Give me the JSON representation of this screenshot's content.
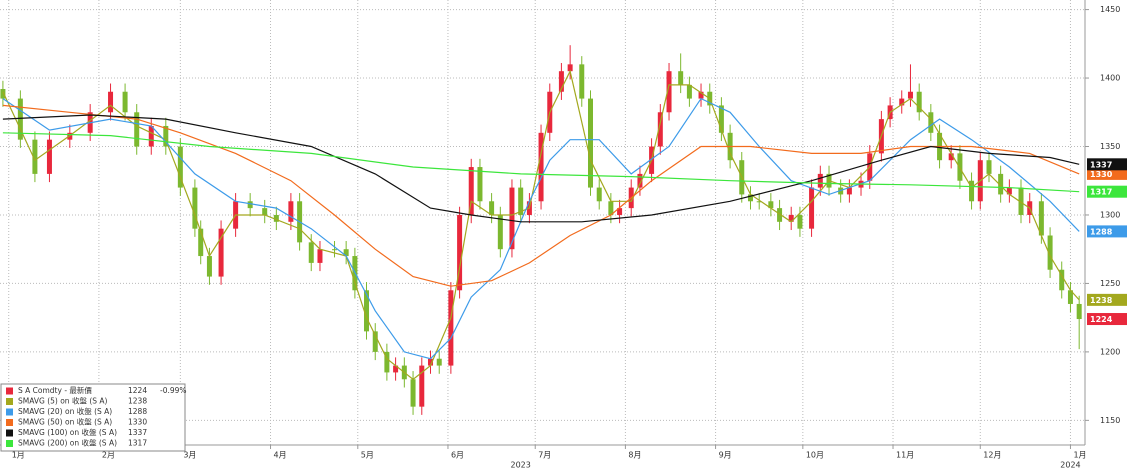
{
  "chart_data": {
    "type": "candlestick",
    "name": "S A Comdty - 最新價",
    "change": "-0.99%",
    "up_color": "#e8283c",
    "down_color": "#7cb82f",
    "x": [
      -2,
      4,
      9,
      14,
      21,
      28,
      35,
      40,
      44,
      49,
      54,
      59,
      64,
      66,
      69,
      73,
      78,
      83,
      88,
      92,
      97,
      100,
      104,
      107,
      112,
      116,
      119,
      123,
      126,
      130,
      133,
      136,
      139,
      142,
      145,
      148,
      152,
      155,
      159,
      162,
      166,
      169,
      173,
      176,
      179,
      183,
      186,
      190,
      193,
      197,
      200,
      203,
      207,
      210,
      214,
      217,
      221,
      224,
      227,
      231,
      234,
      238,
      241,
      245,
      248,
      252,
      255,
      258,
      262,
      265,
      269,
      272,
      276,
      279,
      282,
      286,
      289,
      293,
      296,
      300,
      303,
      307,
      310,
      313,
      317,
      320,
      324,
      327,
      331,
      334,
      337,
      341,
      344,
      348,
      351,
      355,
      358,
      362,
      365,
      368
    ],
    "open": [
      1392,
      1385,
      1355,
      1330,
      1355,
      1360,
      1375,
      1390,
      1375,
      1350,
      1365,
      1350,
      1320,
      1290,
      1270,
      1255,
      1290,
      1310,
      1305,
      1300,
      1295,
      1310,
      1280,
      1265,
      1275,
      1275,
      1270,
      1245,
      1215,
      1200,
      1185,
      1190,
      1180,
      1160,
      1190,
      1195,
      1190,
      1245,
      1300,
      1335,
      1310,
      1300,
      1275,
      1320,
      1300,
      1310,
      1360,
      1390,
      1405,
      1410,
      1385,
      1320,
      1310,
      1300,
      1305,
      1320,
      1330,
      1350,
      1375,
      1405,
      1395,
      1385,
      1390,
      1380,
      1360,
      1340,
      1315,
      1310,
      1310,
      1305,
      1295,
      1300,
      1290,
      1320,
      1330,
      1320,
      1315,
      1320,
      1325,
      1345,
      1370,
      1380,
      1385,
      1390,
      1375,
      1360,
      1340,
      1345,
      1325,
      1310,
      1340,
      1330,
      1315,
      1320,
      1300,
      1310,
      1285,
      1260,
      1245,
      1235
    ],
    "high": [
      1398,
      1391,
      1361,
      1361,
      1366,
      1381,
      1396,
      1396,
      1381,
      1371,
      1371,
      1356,
      1326,
      1296,
      1276,
      1296,
      1316,
      1316,
      1311,
      1306,
      1316,
      1316,
      1286,
      1281,
      1281,
      1281,
      1276,
      1251,
      1221,
      1206,
      1196,
      1196,
      1186,
      1196,
      1201,
      1201,
      1251,
      1306,
      1341,
      1341,
      1316,
      1306,
      1326,
      1326,
      1316,
      1366,
      1396,
      1411,
      1424,
      1416,
      1391,
      1326,
      1316,
      1311,
      1326,
      1336,
      1356,
      1381,
      1411,
      1418,
      1401,
      1396,
      1396,
      1386,
      1366,
      1346,
      1321,
      1316,
      1316,
      1311,
      1306,
      1306,
      1326,
      1336,
      1336,
      1326,
      1326,
      1331,
      1351,
      1376,
      1386,
      1391,
      1410,
      1396,
      1381,
      1366,
      1351,
      1351,
      1331,
      1346,
      1346,
      1336,
      1326,
      1326,
      1316,
      1316,
      1291,
      1266,
      1251,
      1241
    ],
    "low": [
      1379,
      1349,
      1324,
      1324,
      1349,
      1354,
      1369,
      1369,
      1344,
      1344,
      1344,
      1314,
      1284,
      1264,
      1249,
      1249,
      1284,
      1299,
      1294,
      1289,
      1289,
      1274,
      1259,
      1259,
      1269,
      1264,
      1239,
      1209,
      1194,
      1179,
      1179,
      1174,
      1154,
      1154,
      1184,
      1184,
      1184,
      1239,
      1294,
      1304,
      1294,
      1269,
      1269,
      1294,
      1294,
      1304,
      1354,
      1384,
      1399,
      1379,
      1314,
      1304,
      1294,
      1294,
      1299,
      1314,
      1324,
      1344,
      1369,
      1389,
      1379,
      1379,
      1374,
      1354,
      1334,
      1309,
      1304,
      1304,
      1299,
      1289,
      1289,
      1284,
      1284,
      1314,
      1314,
      1309,
      1309,
      1314,
      1319,
      1339,
      1364,
      1374,
      1379,
      1369,
      1354,
      1334,
      1334,
      1319,
      1304,
      1304,
      1324,
      1309,
      1309,
      1294,
      1294,
      1279,
      1254,
      1239,
      1229,
      1202
    ],
    "close": [
      1385,
      1355,
      1330,
      1355,
      1360,
      1375,
      1390,
      1375,
      1350,
      1365,
      1350,
      1320,
      1290,
      1270,
      1255,
      1290,
      1310,
      1305,
      1300,
      1295,
      1310,
      1280,
      1265,
      1275,
      1275,
      1270,
      1245,
      1215,
      1200,
      1185,
      1190,
      1180,
      1160,
      1190,
      1195,
      1190,
      1245,
      1300,
      1335,
      1310,
      1300,
      1275,
      1320,
      1300,
      1310,
      1360,
      1390,
      1405,
      1410,
      1385,
      1320,
      1310,
      1300,
      1305,
      1320,
      1330,
      1350,
      1375,
      1405,
      1395,
      1385,
      1390,
      1380,
      1360,
      1340,
      1315,
      1310,
      1310,
      1305,
      1295,
      1300,
      1290,
      1320,
      1330,
      1320,
      1315,
      1320,
      1325,
      1345,
      1370,
      1380,
      1385,
      1390,
      1375,
      1360,
      1340,
      1345,
      1325,
      1310,
      1340,
      1330,
      1315,
      1320,
      1300,
      1310,
      1285,
      1260,
      1245,
      1235,
      1224
    ],
    "overlays": [
      {
        "name": "SMAVG (5)  on 收盤 (S A)",
        "color": "#a3a81e",
        "x": [
          -2,
          9,
          21,
          35,
          44,
          54,
          64,
          69,
          78,
          88,
          100,
          107,
          116,
          123,
          130,
          139,
          145,
          152,
          159,
          166,
          173,
          179,
          186,
          193,
          200,
          207,
          214,
          221,
          227,
          234,
          241,
          248,
          255,
          262,
          269,
          276,
          282,
          289,
          296,
          303,
          310,
          317,
          324,
          331,
          337,
          344,
          351,
          358,
          365,
          368
        ],
        "values": [
          1390,
          1340,
          1358,
          1380,
          1365,
          1355,
          1300,
          1270,
          1300,
          1300,
          1290,
          1275,
          1270,
          1225,
          1195,
          1180,
          1190,
          1225,
          1310,
          1300,
          1300,
          1305,
          1375,
          1405,
          1340,
          1310,
          1310,
          1340,
          1395,
          1395,
          1385,
          1345,
          1315,
          1305,
          1295,
          1310,
          1325,
          1320,
          1335,
          1375,
          1385,
          1370,
          1345,
          1320,
          1330,
          1315,
          1305,
          1270,
          1245,
          1238
        ]
      },
      {
        "name": "SMAVG (20)  on 收盤 (S A)",
        "color": "#3d9be9",
        "x": [
          -2,
          14,
          35,
          49,
          64,
          78,
          92,
          104,
          116,
          126,
          136,
          145,
          152,
          159,
          169,
          179,
          186,
          193,
          203,
          214,
          227,
          238,
          248,
          258,
          269,
          282,
          296,
          310,
          320,
          331,
          344,
          358,
          368
        ],
        "values": [
          1385,
          1362,
          1370,
          1365,
          1330,
          1310,
          1305,
          1290,
          1270,
          1230,
          1200,
          1195,
          1210,
          1240,
          1260,
          1310,
          1340,
          1355,
          1355,
          1330,
          1350,
          1385,
          1375,
          1350,
          1325,
          1315,
          1325,
          1355,
          1370,
          1355,
          1335,
          1310,
          1288
        ]
      },
      {
        "name": "SMAVG (50)  on 收盤 (S A)",
        "color": "#f26b1d",
        "x": [
          -2,
          21,
          44,
          59,
          78,
          97,
          112,
          126,
          139,
          152,
          166,
          179,
          193,
          207,
          221,
          238,
          255,
          276,
          293,
          310,
          331,
          351,
          368
        ],
        "values": [
          1380,
          1375,
          1370,
          1360,
          1345,
          1325,
          1300,
          1275,
          1255,
          1248,
          1252,
          1265,
          1285,
          1300,
          1325,
          1350,
          1350,
          1345,
          1345,
          1350,
          1350,
          1345,
          1330
        ]
      },
      {
        "name": "SMAVG (100)  on 收盤 (S A)",
        "color": "#111111",
        "x": [
          -2,
          28,
          54,
          78,
          104,
          126,
          145,
          159,
          176,
          197,
          221,
          248,
          276,
          300,
          317,
          337,
          358,
          368
        ],
        "values": [
          1370,
          1373,
          1370,
          1360,
          1350,
          1330,
          1305,
          1300,
          1295,
          1295,
          1300,
          1310,
          1325,
          1340,
          1350,
          1345,
          1342,
          1337
        ]
      },
      {
        "name": "SMAVG (200)  on 收盤 (S A)",
        "color": "#3ce63c",
        "x": [
          -2,
          35,
          69,
          104,
          139,
          176,
          214,
          248,
          282,
          310,
          344,
          368
        ],
        "values": [
          1360,
          1358,
          1350,
          1345,
          1335,
          1330,
          1328,
          1325,
          1323,
          1322,
          1320,
          1317
        ]
      }
    ],
    "xlim": [
      -3,
      370
    ],
    "ylim": [
      1132,
      1457
    ],
    "xticks": [
      {
        "value": 0,
        "label": "1月"
      },
      {
        "value": 31,
        "label": "2月"
      },
      {
        "value": 59,
        "label": "3月"
      },
      {
        "value": 90,
        "label": "4月"
      },
      {
        "value": 120,
        "label": "5月"
      },
      {
        "value": 151,
        "label": "6月"
      },
      {
        "value": 181,
        "label": "7月"
      },
      {
        "value": 212,
        "label": "8月"
      },
      {
        "value": 243,
        "label": "9月"
      },
      {
        "value": 273,
        "label": "10月"
      },
      {
        "value": 304,
        "label": "11月"
      },
      {
        "value": 334,
        "label": "12月"
      },
      {
        "value": 365,
        "label": "1月"
      }
    ],
    "year_labels": [
      {
        "value": 176,
        "label": "2023"
      },
      {
        "value": 365,
        "label": "2024"
      }
    ],
    "yticks": [
      1150,
      1200,
      1250,
      1300,
      1350,
      1400,
      1450
    ],
    "grid": true
  }
}
